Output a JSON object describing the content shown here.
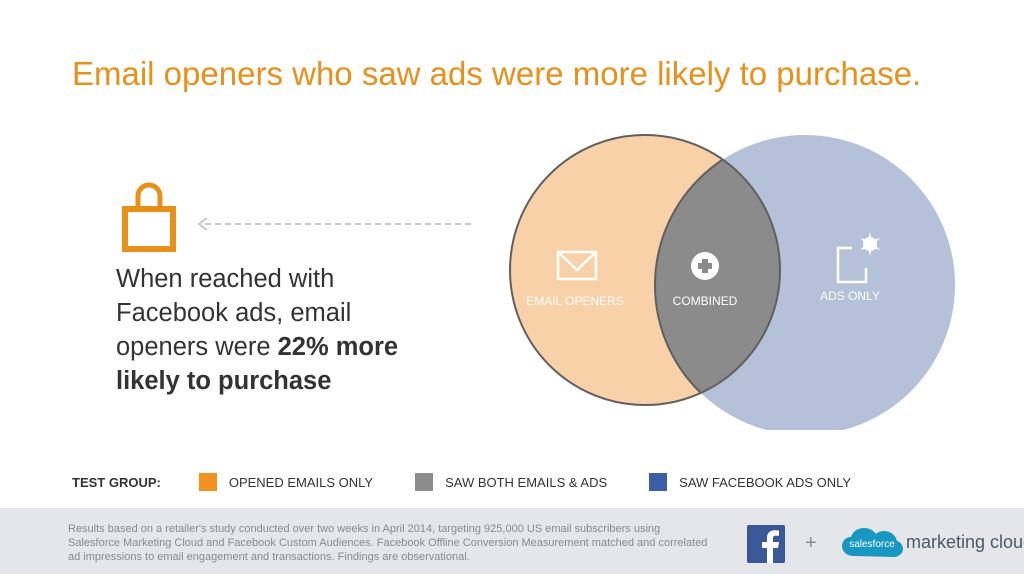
{
  "title": "Email openers who saw ads were more likely to purchase.",
  "claim": {
    "line1": "When reached with",
    "line2": "Facebook ads, email",
    "line3_prefix": "openers were ",
    "line3_bold": "22% more",
    "line4_bold": "likely to purchase"
  },
  "venn": {
    "email_label": "EMAIL OPENERS",
    "combined_label": "COMBINED",
    "ads_label": "ADS ONLY"
  },
  "legend": {
    "title": "TEST GROUP:",
    "items": [
      {
        "label": "OPENED EMAILS ONLY",
        "color": "#f0921e"
      },
      {
        "label": "SAW BOTH EMAILS & ADS",
        "color": "#8c8c8c"
      },
      {
        "label": "SAW FACEBOOK ADS ONLY",
        "color": "#3c5ea6"
      }
    ]
  },
  "footer": {
    "disclaimer": "Results based on a retailer's study conducted over two weeks in April 2014, targeting 925,000 US email subscribers using Salesforce Marketing Cloud and Facebook Custom Audiences. Facebook Offline Conversion Measurement matched and correlated ad impressions to email engagement and transactions. Findings are observational.",
    "plus": "+",
    "salesforce_logo_text": "salesforce",
    "salesforce_product": "marketing cloud"
  },
  "colors": {
    "title": "#e8901a",
    "email_circle": "#f8d1a8",
    "ads_circle": "#b5c0d9",
    "overlap": "#8b8b8b"
  }
}
